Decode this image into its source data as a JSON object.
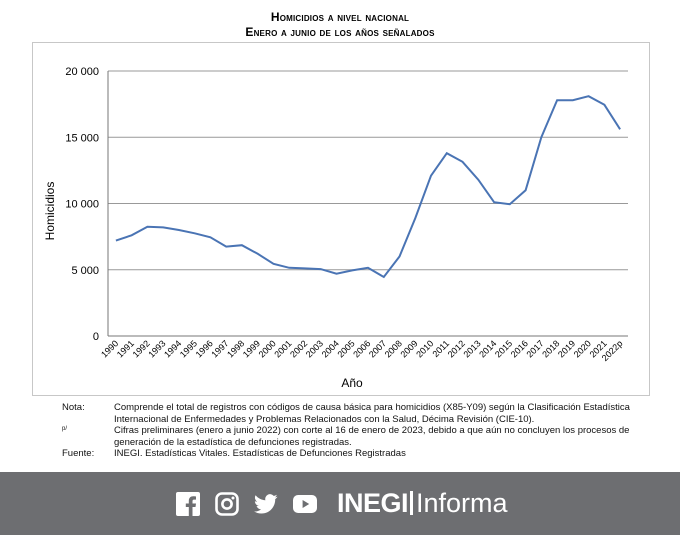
{
  "header": {
    "title_line1": "Homicidios a nivel nacional",
    "title_line2": "Enero a junio de los años señalados"
  },
  "chart_data": {
    "type": "line",
    "title": "Homicidios a nivel nacional / Enero a junio de los años señalados",
    "xlabel": "Año",
    "ylabel": "Homicidios",
    "ylim": [
      0,
      20000
    ],
    "yticks": [
      0,
      5000,
      10000,
      15000,
      20000
    ],
    "ytick_labels": [
      "0",
      "5 000",
      "10 000",
      "15 000",
      "20 000"
    ],
    "grid": true,
    "line_color": "#4a74b4",
    "categories": [
      "1990",
      "1991",
      "1992",
      "1993",
      "1994",
      "1995",
      "1996",
      "1997",
      "1998",
      "1999",
      "2000",
      "2001",
      "2002",
      "2003",
      "2004",
      "2005",
      "2006",
      "2007",
      "2008",
      "2009",
      "2010",
      "2011",
      "2012",
      "2013",
      "2014",
      "2015",
      "2016",
      "2017",
      "2018",
      "2019",
      "2020",
      "2021",
      "2022p"
    ],
    "values": [
      7200,
      7600,
      8250,
      8200,
      8000,
      7750,
      7450,
      6750,
      6850,
      6200,
      5450,
      5150,
      5100,
      5050,
      4700,
      4950,
      5150,
      4450,
      6000,
      8900,
      12100,
      13800,
      13150,
      11800,
      10100,
      9950,
      11000,
      15000,
      17800,
      17800,
      18100,
      17450,
      15600
    ]
  },
  "notes": {
    "nota_key": "Nota:",
    "nota_text": "Comprende el total de registros con códigos de causa básica para homicidios (X85-Y09) según la Clasificación Estadística Internacional de Enfermedades y Problemas Relacionados con la Salud, Décima Revisión (CIE-10).",
    "prelim_key": "p/",
    "prelim_text": "Cifras preliminares (enero a junio 2022) con corte al 16 de enero de 2023, debido a que aún no concluyen los procesos de generación de la estadística de defunciones registradas.",
    "fuente_key": "Fuente:",
    "fuente_text": "INEGI. Estadísticas Vitales. Estadísticas de Defunciones Registradas"
  },
  "footer": {
    "brand_bold": "INEGI",
    "brand_light": "Informa",
    "social_icons": [
      "facebook-icon",
      "instagram-icon",
      "twitter-icon",
      "youtube-icon"
    ],
    "background": "#6d6e71"
  }
}
